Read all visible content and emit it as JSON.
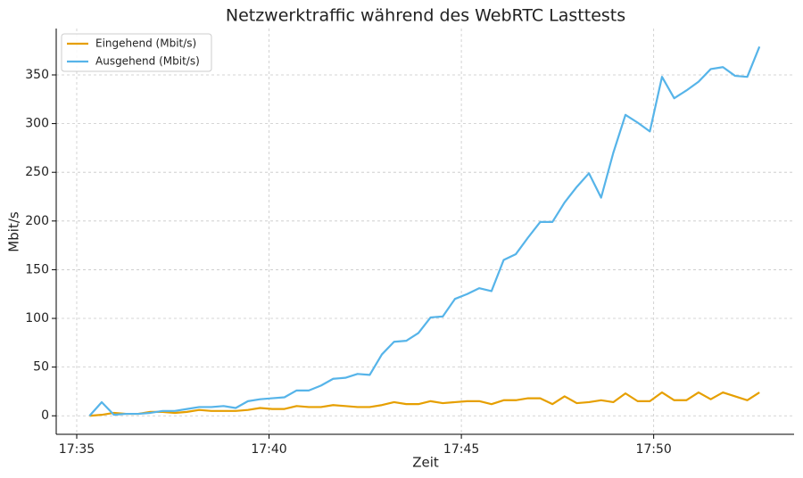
{
  "chart_data": {
    "type": "line",
    "title": "Netzwerktraffic während des WebRTC Lasttests",
    "x_label": "Zeit",
    "y_label": "Mbit/s",
    "x": [
      "17:35:20",
      "17:35:39",
      "17:35:58",
      "17:36:17",
      "17:36:36",
      "17:36:55",
      "17:37:14",
      "17:37:33",
      "17:37:52",
      "17:38:11",
      "17:38:30",
      "17:38:49",
      "17:39:08",
      "17:39:27",
      "17:39:46",
      "17:40:05",
      "17:40:24",
      "17:40:43",
      "17:41:02",
      "17:41:21",
      "17:41:40",
      "17:41:59",
      "17:42:18",
      "17:42:37",
      "17:42:56",
      "17:43:15",
      "17:43:34",
      "17:43:53",
      "17:44:12",
      "17:44:31",
      "17:44:50",
      "17:45:09",
      "17:45:28",
      "17:45:47",
      "17:46:06",
      "17:46:25",
      "17:46:44",
      "17:47:03",
      "17:47:22",
      "17:47:41",
      "17:48:00",
      "17:48:19",
      "17:48:38",
      "17:48:57",
      "17:49:16",
      "17:49:35",
      "17:49:54",
      "17:50:13",
      "17:50:32",
      "17:50:51",
      "17:51:10",
      "17:51:29",
      "17:51:48",
      "17:52:07",
      "17:52:26",
      "17:52:45"
    ],
    "series": [
      {
        "name": "Eingehend (Mbit/s)",
        "color": "#e69f00",
        "values": [
          0,
          1,
          3,
          2,
          2,
          4,
          4,
          3,
          4,
          6,
          5,
          5,
          5,
          6,
          8,
          7,
          7,
          10,
          9,
          9,
          11,
          10,
          9,
          9,
          11,
          14,
          12,
          12,
          15,
          13,
          14,
          15,
          15,
          12,
          16,
          16,
          18,
          18,
          12,
          20,
          13,
          14,
          16,
          14,
          23,
          15,
          15,
          24,
          16,
          16,
          24,
          17,
          24,
          20,
          16,
          24
        ]
      },
      {
        "name": "Ausgehend (Mbit/s)",
        "color": "#56b4e9",
        "values": [
          0,
          14,
          1,
          2,
          2,
          3,
          5,
          5,
          7,
          9,
          9,
          10,
          8,
          15,
          17,
          18,
          19,
          26,
          26,
          31,
          38,
          39,
          43,
          42,
          63,
          76,
          77,
          85,
          101,
          102,
          120,
          125,
          131,
          128,
          160,
          166,
          183,
          199,
          199,
          219,
          235,
          249,
          224,
          270,
          309,
          301,
          292,
          348,
          326,
          334,
          343,
          356,
          358,
          349,
          348,
          379
        ]
      }
    ],
    "xlim": [
      "17:34:28",
      "17:53:39"
    ],
    "xticks": [
      "17:35",
      "17:40",
      "17:45",
      "17:50"
    ],
    "ylim": [
      -19,
      397.6
    ],
    "yticks": [
      0,
      50,
      100,
      150,
      200,
      250,
      300,
      350
    ],
    "grid": true,
    "legend": "upper left"
  }
}
